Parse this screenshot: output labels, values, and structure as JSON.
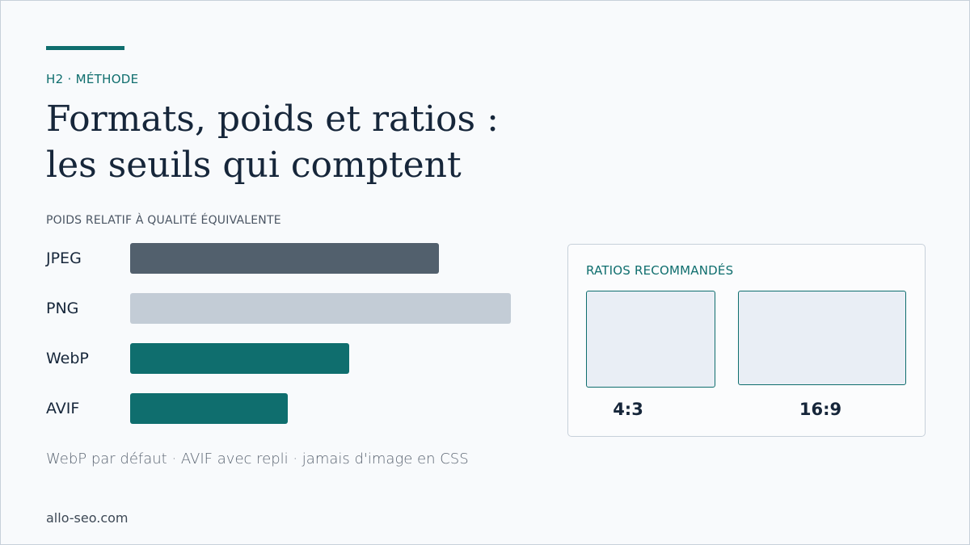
{
  "header": {
    "eyebrow": "H2 · MÉTHODE",
    "title_line1": "Formats, poids et ratios :",
    "title_line2": "les seuils qui comptent"
  },
  "chart_data": {
    "type": "bar",
    "orientation": "horizontal",
    "title": "POIDS RELATIF À QUALITÉ ÉQUIVALENTE",
    "categories": [
      "JPEG",
      "PNG",
      "WebP",
      "AVIF"
    ],
    "values": [
      81,
      100,
      57.5,
      41.5
    ],
    "colors": [
      "#52606d",
      "#c3ccd6",
      "#0f6e6e",
      "#0f6e6e"
    ],
    "xlim": [
      0,
      100
    ],
    "axes_visible": false,
    "grid": false
  },
  "footnote": "WebP par défaut · AVIF avec repli · jamais d'image en CSS",
  "ratios": {
    "title": "RATIOS RECOMMANDÉS",
    "items": [
      {
        "label": "4:3"
      },
      {
        "label": "16:9"
      }
    ]
  },
  "site": "allo-seo.com",
  "colors": {
    "accent": "#0f6e6e",
    "text_dark": "#16263a",
    "background": "#f8fafc"
  }
}
